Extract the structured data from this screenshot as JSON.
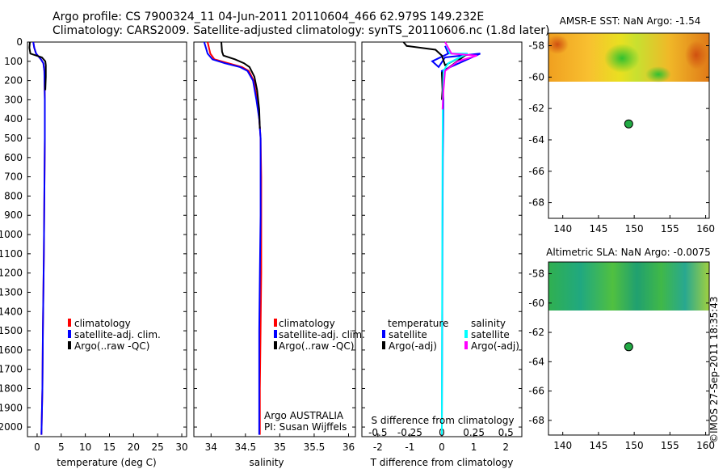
{
  "header": {
    "line1": "Argo profile: CS 7900324_11 04-Jun-2011 20110604_466 62.979S 149.232E",
    "line2": "Climatology: CARS2009. Satellite-adjusted climatology: synTS_20110606.nc (1.8d later)"
  },
  "colors": {
    "clim": "#ff0000",
    "sat": "#0000ff",
    "argo": "#000000",
    "satS": "#00ffff",
    "argoS": "#ff00ff",
    "dot": "#22aa44"
  },
  "depth_ticks": [
    "0",
    "100",
    "200",
    "300",
    "400",
    "500",
    "600",
    "700",
    "800",
    "900",
    "1000",
    "1100",
    "1200",
    "1300",
    "1400",
    "1500",
    "1600",
    "1700",
    "1800",
    "1900",
    "2000"
  ],
  "legend": {
    "clim": "climatology",
    "sat": "satellite-adj. clim.",
    "argo": "Argo(..raw -QC)"
  },
  "diff_legend": {
    "temperature": "temperature",
    "salinity": "salinity",
    "sat_t": "satellite",
    "argo_t": "Argo(-adj)",
    "sat_s": "satellite",
    "argo_s": "Argo(-adj)"
  },
  "credit": {
    "line1": "Argo AUSTRALIA",
    "line2": "PI: Susan Wijffels"
  },
  "watermark": "©IMOS 27-Sep-2011 18:35:43",
  "chart_data": [
    {
      "type": "line",
      "id": "temperature",
      "xlabel": "temperature (deg C)",
      "xlim": [
        -2,
        31
      ],
      "ylim": [
        2050,
        0
      ],
      "xticks": [
        0,
        5,
        10,
        15,
        20,
        25,
        30
      ],
      "series": [
        {
          "name": "climatology",
          "color": "clim",
          "x": [
            -0.8,
            -0.6,
            -0.2,
            0.8,
            1.3,
            1.5,
            1.6,
            1.6,
            1.5,
            1.4,
            1.2,
            1.1,
            0.9
          ],
          "y": [
            0,
            30,
            60,
            90,
            110,
            150,
            300,
            500,
            800,
            1100,
            1500,
            1800,
            2040
          ]
        },
        {
          "name": "satellite-adj. clim.",
          "color": "sat",
          "x": [
            -0.8,
            -0.6,
            -0.2,
            0.8,
            1.3,
            1.5,
            1.6,
            1.6,
            1.5,
            1.4,
            1.2,
            1.1,
            0.9
          ],
          "y": [
            0,
            30,
            60,
            90,
            110,
            150,
            300,
            500,
            800,
            1100,
            1500,
            1800,
            2040
          ]
        },
        {
          "name": "Argo(..raw -QC)",
          "color": "argo",
          "x": [
            -1.5,
            -1.6,
            -1.4,
            1.0,
            1.7,
            1.8,
            1.8,
            1.7
          ],
          "y": [
            0,
            30,
            60,
            80,
            100,
            120,
            180,
            250
          ]
        }
      ]
    },
    {
      "type": "line",
      "id": "salinity",
      "xlabel": "salinity",
      "xlim": [
        33.75,
        36.1
      ],
      "ylim": [
        2050,
        0
      ],
      "xticks": [
        34,
        34.5,
        35,
        35.5,
        36
      ],
      "series": [
        {
          "name": "climatology",
          "color": "clim",
          "x": [
            33.95,
            33.99,
            34.05,
            34.25,
            34.45,
            34.55,
            34.62,
            34.67,
            34.7,
            34.72,
            34.73,
            34.73,
            34.73,
            34.72,
            34.71,
            34.71
          ],
          "y": [
            0,
            60,
            90,
            110,
            130,
            150,
            200,
            300,
            400,
            500,
            700,
            900,
            1200,
            1500,
            1800,
            2040
          ]
        },
        {
          "name": "satellite-adj. clim.",
          "color": "sat",
          "x": [
            33.9,
            33.95,
            34.02,
            34.2,
            34.42,
            34.53,
            34.61,
            34.66,
            34.7,
            34.72,
            34.72,
            34.72,
            34.71,
            34.7,
            34.7,
            34.7
          ],
          "y": [
            0,
            60,
            90,
            110,
            130,
            150,
            200,
            300,
            400,
            500,
            700,
            900,
            1200,
            1500,
            1800,
            2040
          ]
        },
        {
          "name": "Argo(..raw -QC)",
          "color": "argo",
          "x": [
            34.15,
            34.16,
            34.18,
            34.35,
            34.48,
            34.56,
            34.63,
            34.67,
            34.7,
            34.71
          ],
          "y": [
            0,
            50,
            70,
            90,
            110,
            130,
            180,
            250,
            350,
            450
          ]
        }
      ]
    },
    {
      "type": "line",
      "id": "difference",
      "xlabel": "T difference from climatology",
      "x2label": "S difference from climatology",
      "xlim": [
        -2.5,
        2.5
      ],
      "x2lim": [
        -0.625,
        0.625
      ],
      "ylim": [
        2050,
        0
      ],
      "xticks": [
        -2,
        -1,
        0,
        1,
        2
      ],
      "x2ticks": [
        "-0.5",
        "-0.25",
        "0",
        "0.25",
        "0.5"
      ],
      "series": [
        {
          "name": "temperature satellite",
          "color": "sat",
          "x": [
            0.1,
            0.2,
            -0.3,
            -0.1,
            0.1,
            1.2,
            0.0,
            0.05,
            0.03,
            0.02,
            0.01,
            0.0
          ],
          "y": [
            20,
            60,
            100,
            130,
            80,
            60,
            150,
            300,
            600,
            1000,
            1500,
            2040
          ]
        },
        {
          "name": "temperature Argo(-adj)",
          "color": "argo",
          "x": [
            -1.2,
            -1.1,
            -0.2,
            0.0,
            0.1,
            0.8,
            0.0,
            0.02,
            0.0
          ],
          "y": [
            0,
            20,
            40,
            70,
            120,
            60,
            160,
            250,
            300
          ]
        },
        {
          "name": "salinity satellite",
          "color": "satS",
          "x": [
            0.15,
            0.25,
            0.8,
            0.2,
            0.05,
            0.03,
            0.02,
            0.01,
            0.0
          ],
          "y": [
            20,
            60,
            60,
            110,
            150,
            300,
            600,
            1200,
            2040
          ]
        },
        {
          "name": "salinity Argo(-adj)",
          "color": "argoS",
          "x": [
            0.1,
            0.3,
            1.1,
            0.5,
            0.1,
            0.05,
            0.02
          ],
          "y": [
            0,
            60,
            70,
            100,
            150,
            250,
            350
          ]
        }
      ]
    },
    {
      "type": "heatmap",
      "id": "sst_map",
      "title": "AMSR-E SST: NaN Argo: -1.54",
      "xlim": [
        138,
        160.5
      ],
      "ylim": [
        -69,
        -57.2
      ],
      "xticks": [
        140,
        145,
        150,
        155,
        160
      ],
      "yticks": [
        -58,
        -60,
        -62,
        -64,
        -66,
        -68
      ],
      "field_extent": [
        -60,
        -57.2
      ],
      "argo_position": {
        "lon": 149.232,
        "lat": -62.979
      }
    },
    {
      "type": "heatmap",
      "id": "sla_map",
      "title": "Altimetric SLA: NaN Argo: -0.0075",
      "xlim": [
        138,
        160.5
      ],
      "ylim": [
        -69,
        -57.2
      ],
      "xticks": [
        140,
        145,
        150,
        155,
        160
      ],
      "yticks": [
        -58,
        -60,
        -62,
        -64,
        -66,
        -68
      ],
      "field_extent": [
        -60,
        -57.2
      ],
      "argo_position": {
        "lon": 149.232,
        "lat": -62.979
      }
    }
  ]
}
